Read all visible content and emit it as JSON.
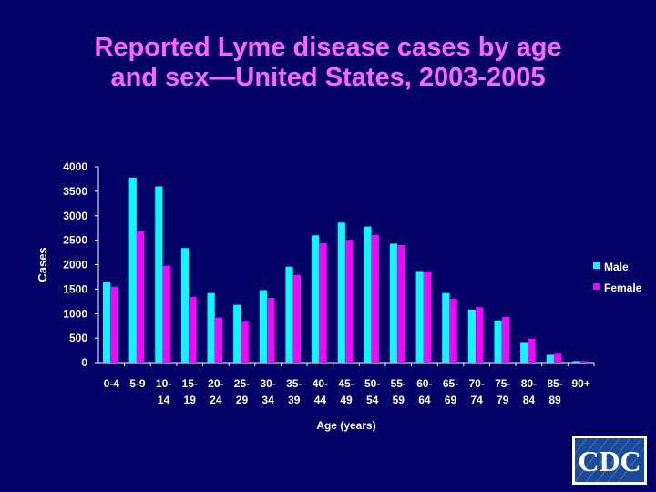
{
  "slide": {
    "title_line1": "Reported Lyme disease cases by age",
    "title_line2": "and sex—United States, 2003-2005",
    "logo_text": "CDC",
    "colors": {
      "background": "#000066",
      "title": "#ff66ff",
      "text": "#ffffff",
      "male": "#00ffff",
      "female": "#ff00ff"
    }
  },
  "chart_data": {
    "type": "bar",
    "title": "Reported Lyme disease cases by age and sex—United States, 2003-2005",
    "xlabel": "Age (years)",
    "ylabel": "Cases",
    "ylim": [
      0,
      4000
    ],
    "yticks": [
      0,
      500,
      1000,
      1500,
      2000,
      2500,
      3000,
      3500,
      4000
    ],
    "grid": false,
    "legend_position": "right",
    "categories": [
      [
        "0-4",
        ""
      ],
      [
        "5-9",
        ""
      ],
      [
        "10-",
        "14"
      ],
      [
        "15-",
        "19"
      ],
      [
        "20-",
        "24"
      ],
      [
        "25-",
        "29"
      ],
      [
        "30-",
        "34"
      ],
      [
        "35-",
        "39"
      ],
      [
        "40-",
        "44"
      ],
      [
        "45-",
        "49"
      ],
      [
        "50-",
        "54"
      ],
      [
        "55-",
        "59"
      ],
      [
        "60-",
        "64"
      ],
      [
        "65-",
        "69"
      ],
      [
        "70-",
        "74"
      ],
      [
        "75-",
        "79"
      ],
      [
        "80-",
        "84"
      ],
      [
        "85-",
        "89"
      ],
      [
        "90+",
        ""
      ]
    ],
    "series": [
      {
        "name": "Male",
        "color": "#00ffff",
        "values": [
          1650,
          3780,
          3600,
          2340,
          1420,
          1180,
          1480,
          1960,
          2600,
          2860,
          2780,
          2430,
          1870,
          1420,
          1080,
          860,
          420,
          160,
          30
        ]
      },
      {
        "name": "Female",
        "color": "#ff00ff",
        "values": [
          1550,
          2680,
          1980,
          1340,
          920,
          850,
          1320,
          1790,
          2440,
          2510,
          2610,
          2400,
          1860,
          1300,
          1130,
          930,
          490,
          200,
          30
        ]
      }
    ]
  }
}
